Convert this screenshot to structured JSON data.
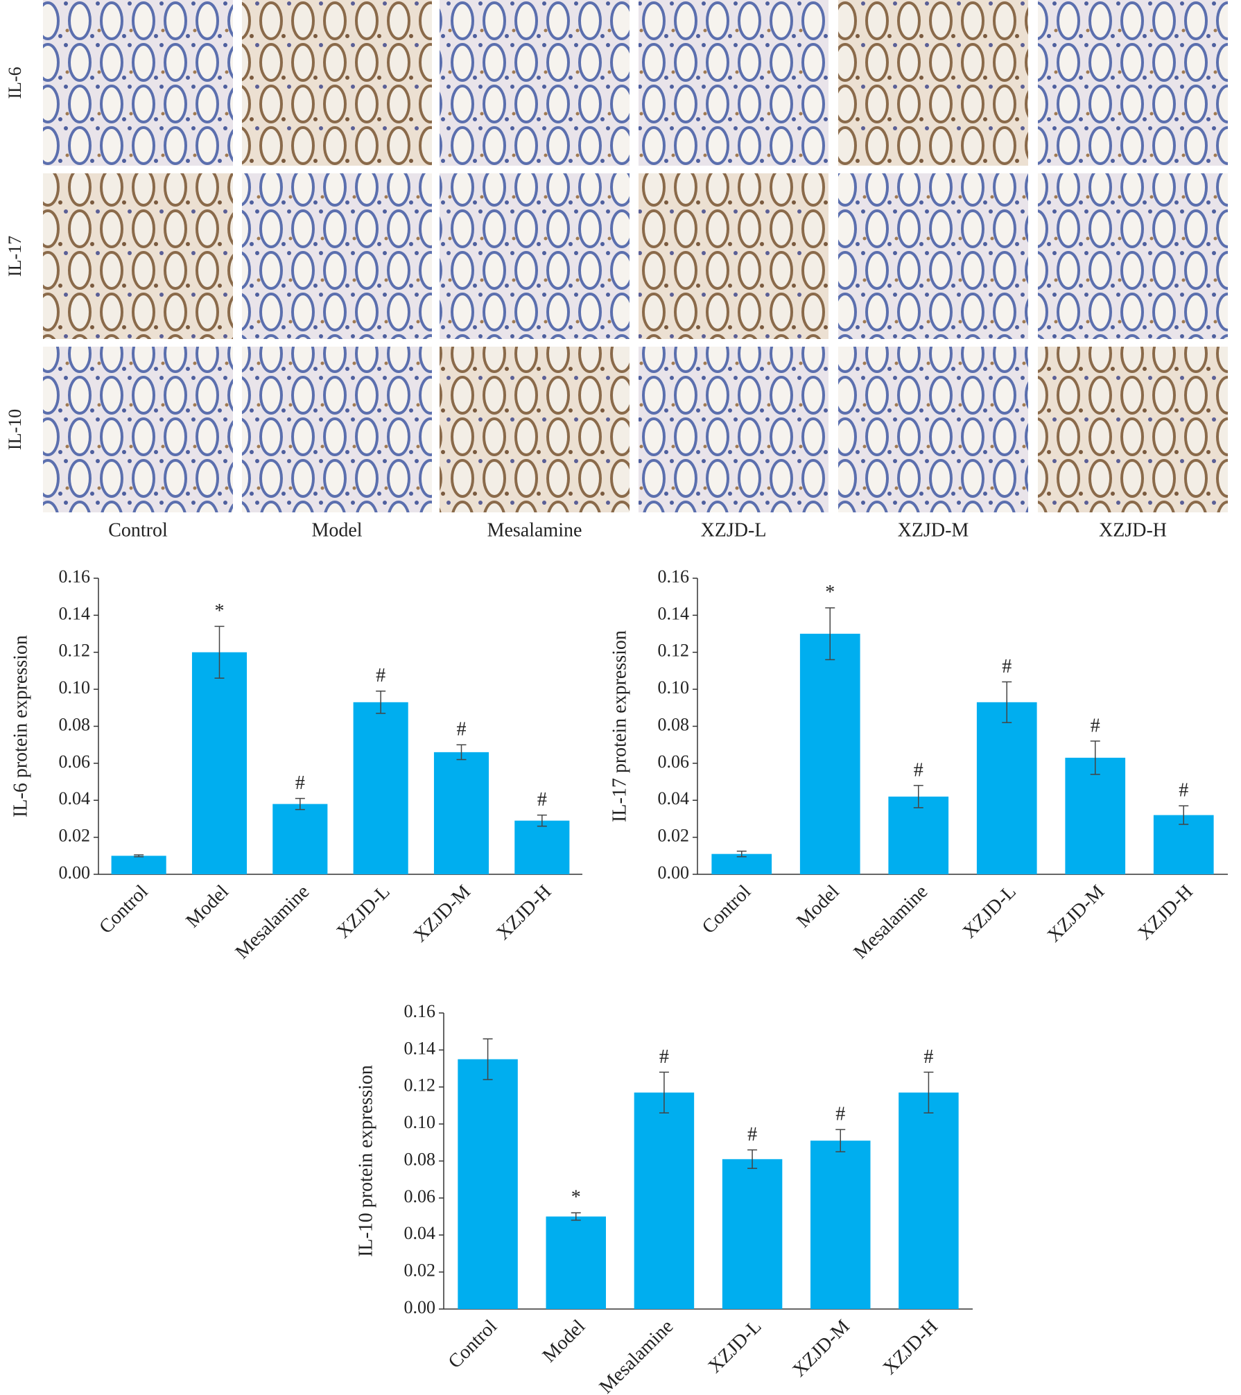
{
  "micrographs": {
    "rows": [
      "IL-6",
      "IL-17",
      "IL-10"
    ],
    "columns": [
      "Control",
      "Model",
      "Mesalamine",
      "XZJD-L",
      "XZJD-M",
      "XZJD-H"
    ]
  },
  "chart_data": [
    {
      "type": "bar",
      "y_label": "IL-6 protein expression",
      "color": "#00aeef",
      "categories": [
        "Control",
        "Model",
        "Mesalamine",
        "XZJD-L",
        "XZJD-M",
        "XZJD-H"
      ],
      "values": [
        0.01,
        0.12,
        0.038,
        0.093,
        0.066,
        0.029
      ],
      "errors": [
        0.0005,
        0.014,
        0.003,
        0.006,
        0.004,
        0.003
      ],
      "markers": [
        null,
        "*",
        "#",
        "#",
        "#",
        "#"
      ],
      "ylim": [
        0,
        0.16
      ],
      "yticks": [
        {
          "value": 0,
          "label": "0.00"
        },
        {
          "value": 0.02,
          "label": "0.02"
        },
        {
          "value": 0.04,
          "label": "0.04"
        },
        {
          "value": 0.06,
          "label": "0.06"
        },
        {
          "value": 0.08,
          "label": "0.08"
        },
        {
          "value": 0.1,
          "label": "0.10"
        },
        {
          "value": 0.12,
          "label": "0.12"
        },
        {
          "value": 0.14,
          "label": "0.14"
        },
        {
          "value": 0.16,
          "label": "0.16"
        }
      ]
    },
    {
      "type": "bar",
      "y_label": "IL-17 protein expression",
      "color": "#00aeef",
      "categories": [
        "Control",
        "Model",
        "Mesalamine",
        "XZJD-L",
        "XZJD-M",
        "XZJD-H"
      ],
      "values": [
        0.011,
        0.13,
        0.042,
        0.093,
        0.063,
        0.032
      ],
      "errors": [
        0.0015,
        0.014,
        0.006,
        0.011,
        0.009,
        0.005
      ],
      "markers": [
        null,
        "*",
        "#",
        "#",
        "#",
        "#"
      ],
      "ylim": [
        0,
        0.16
      ],
      "yticks": [
        {
          "value": 0,
          "label": "0.00"
        },
        {
          "value": 0.02,
          "label": "0.02"
        },
        {
          "value": 0.04,
          "label": "0.04"
        },
        {
          "value": 0.06,
          "label": "0.06"
        },
        {
          "value": 0.08,
          "label": "0.08"
        },
        {
          "value": 0.1,
          "label": "0.10"
        },
        {
          "value": 0.12,
          "label": "0.12"
        },
        {
          "value": 0.14,
          "label": "0.14"
        },
        {
          "value": 0.16,
          "label": "0.16"
        }
      ]
    },
    {
      "type": "bar",
      "y_label": "IL-10 protein expression",
      "color": "#00aeef",
      "categories": [
        "Control",
        "Model",
        "Mesalamine",
        "XZJD-L",
        "XZJD-M",
        "XZJD-H"
      ],
      "values": [
        0.135,
        0.05,
        0.117,
        0.081,
        0.091,
        0.117
      ],
      "errors": [
        0.011,
        0.002,
        0.011,
        0.005,
        0.006,
        0.011
      ],
      "markers": [
        null,
        "*",
        "#",
        "#",
        "#",
        "#"
      ],
      "ylim": [
        0,
        0.16
      ],
      "yticks": [
        {
          "value": 0,
          "label": "0.00"
        },
        {
          "value": 0.02,
          "label": "0.02"
        },
        {
          "value": 0.04,
          "label": "0.04"
        },
        {
          "value": 0.06,
          "label": "0.06"
        },
        {
          "value": 0.08,
          "label": "0.08"
        },
        {
          "value": 0.1,
          "label": "0.10"
        },
        {
          "value": 0.12,
          "label": "0.12"
        },
        {
          "value": 0.14,
          "label": "0.14"
        },
        {
          "value": 0.16,
          "label": "0.16"
        }
      ]
    }
  ]
}
